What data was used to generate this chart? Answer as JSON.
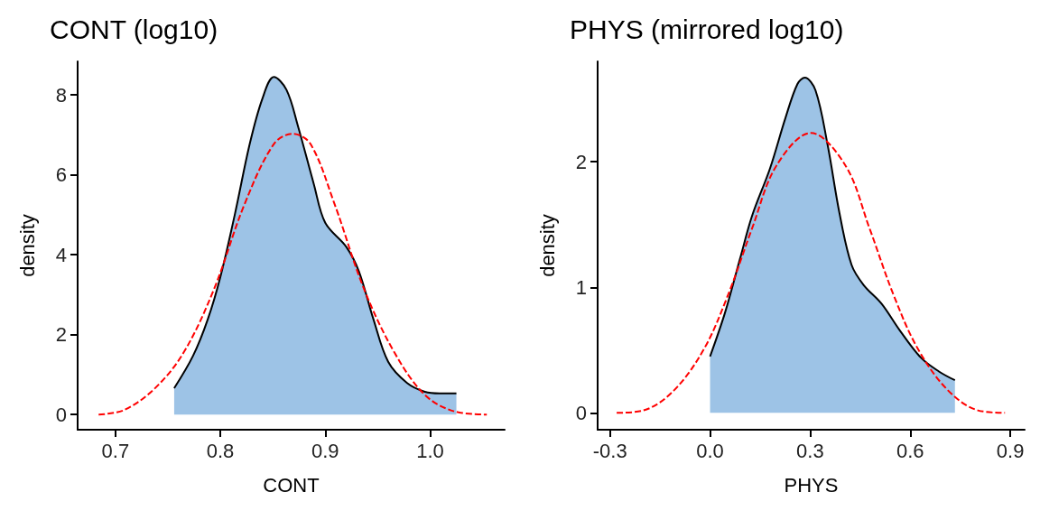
{
  "chart_data": [
    {
      "type": "area",
      "title": "CONT (log10)",
      "xlabel": "CONT",
      "ylabel": "density",
      "xlim": [
        0.664,
        1.071
      ],
      "ylim": [
        -0.38,
        8.84
      ],
      "xticks": [
        0.7,
        0.8,
        0.9,
        {
          "value": 1,
          "label": "1.0"
        }
      ],
      "yticks": [
        0,
        2,
        4,
        6,
        8
      ],
      "grid": false,
      "series": [
        {
          "color": "#9dc3e6",
          "x": [
            0.756,
            0.774,
            0.788,
            0.8,
            0.814,
            0.828,
            0.84,
            0.851,
            0.863,
            0.874,
            0.889,
            0.9,
            0.92,
            0.932,
            0.946,
            0.96,
            0.978,
            0.995,
            1.009,
            1.025
          ],
          "values": [
            0.66,
            1.47,
            2.38,
            3.44,
            5.03,
            6.77,
            7.9,
            8.45,
            8.13,
            7.22,
            5.78,
            4.8,
            4.2,
            3.59,
            2.38,
            1.32,
            0.79,
            0.57,
            0.53,
            0.53
          ]
        },
        {
          "type": "line",
          "color": "#ff0000",
          "line_style": "dashed",
          "x": [
            0.684,
            0.708,
            0.737,
            0.765,
            0.794,
            0.823,
            0.851,
            0.869,
            0.886,
            0.909,
            0.937,
            0.966,
            0.995,
            1.023,
            1.054
          ],
          "values": [
            0,
            0.11,
            0.64,
            1.55,
            3.14,
            5.26,
            6.77,
            7.03,
            6.77,
            5.26,
            3.14,
            1.55,
            0.49,
            0.08,
            0
          ]
        }
      ]
    },
    {
      "type": "area",
      "title": "PHYS (mirrored log10)",
      "xlabel": "PHYS",
      "ylabel": "density",
      "xlim": [
        -0.337,
        0.943
      ],
      "ylim": [
        -0.134,
        2.8
      ],
      "xticks": [
        -0.3,
        {
          "value": 0,
          "label": "0.0"
        },
        0.3,
        0.6,
        0.9
      ],
      "yticks": [
        0,
        1,
        2
      ],
      "grid": false,
      "series": [
        {
          "color": "#9dc3e6",
          "x": [
            0,
            0.045,
            0.09,
            0.126,
            0.18,
            0.226,
            0.262,
            0.284,
            0.316,
            0.352,
            0.388,
            0.424,
            0.46,
            0.514,
            0.568,
            0.632,
            0.686,
            0.734
          ],
          "values": [
            0.45,
            0.8,
            1.23,
            1.57,
            1.95,
            2.35,
            2.62,
            2.67,
            2.57,
            2.14,
            1.59,
            1.18,
            1.02,
            0.87,
            0.66,
            0.44,
            0.33,
            0.26
          ]
        },
        {
          "type": "line",
          "color": "#ff0000",
          "line_style": "dashed",
          "x": [
            -0.28,
            -0.199,
            -0.108,
            -0.018,
            0.054,
            0.126,
            0.199,
            0.302,
            0.406,
            0.478,
            0.55,
            0.623,
            0.713,
            0.803,
            0.884
          ],
          "values": [
            0,
            0.02,
            0.18,
            0.51,
            0.94,
            1.47,
            1.97,
            2.23,
            1.97,
            1.47,
            0.94,
            0.51,
            0.18,
            0.02,
            0
          ]
        }
      ]
    }
  ]
}
